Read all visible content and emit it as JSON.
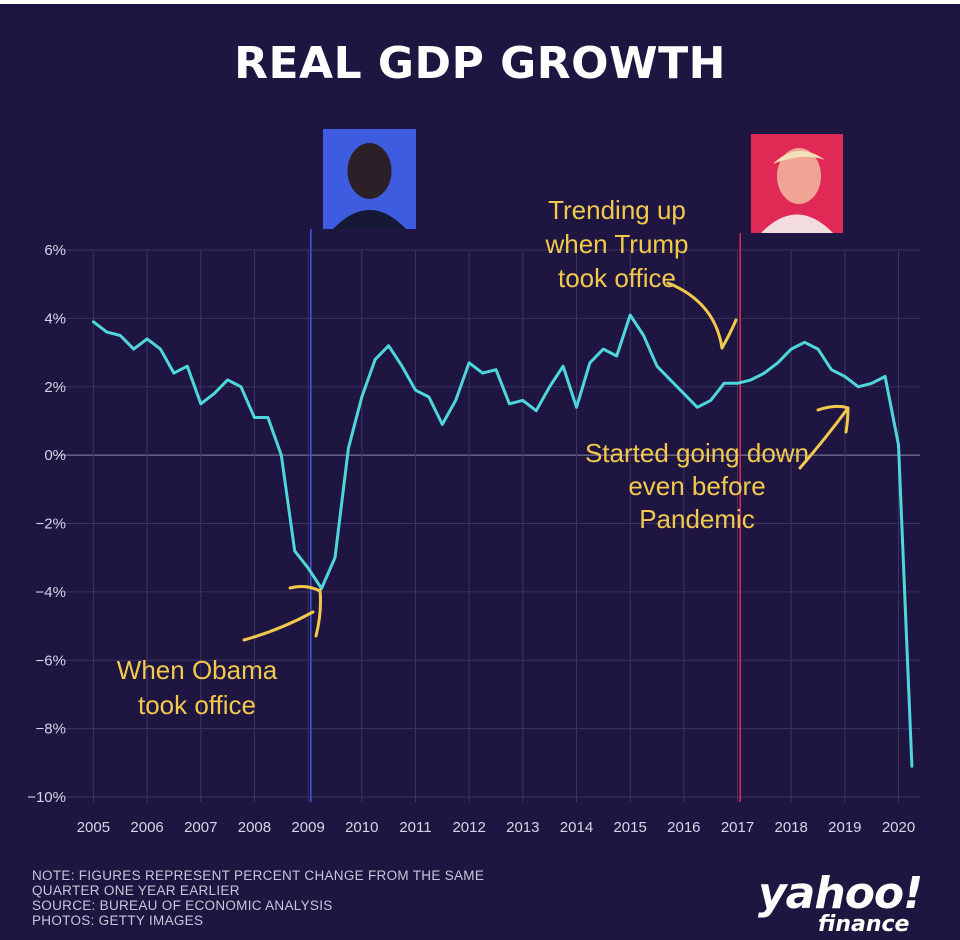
{
  "title": "REAL GDP GROWTH",
  "notes": [
    "NOTE: FIGURES REPRESENT PERCENT CHANGE FROM THE SAME",
    "QUARTER ONE YEAR EARLIER",
    "SOURCE: BUREAU OF ECONOMIC ANALYSIS",
    "PHOTOS: GETTY IMAGES"
  ],
  "logo": {
    "word": "yahoo!",
    "sub": "finance"
  },
  "colors": {
    "background": "#1e1641",
    "line": "#4fd6dc",
    "annotation": "#f2c94c",
    "obama_marker": "#3e5ce0",
    "trump_marker": "#e02a55",
    "grid": "#3b3460"
  },
  "photos": [
    {
      "name": "obama-photo",
      "bg": "#3e5ce0"
    },
    {
      "name": "trump-photo",
      "bg": "#e02a55"
    }
  ],
  "annotations": [
    {
      "name": "obama-annotation",
      "lines": [
        "When Obama",
        "took office"
      ]
    },
    {
      "name": "trump-annotation",
      "lines": [
        "Trending up",
        "when Trump",
        "took office"
      ]
    },
    {
      "name": "pandemic-annotation",
      "lines": [
        "Started going down",
        "even before",
        "Pandemic"
      ]
    }
  ],
  "chart_data": {
    "type": "line",
    "title": "REAL GDP GROWTH",
    "xlabel": "",
    "ylabel": "",
    "x_ticks": [
      "2005",
      "2006",
      "2007",
      "2008",
      "2009",
      "2010",
      "2011",
      "2012",
      "2013",
      "2014",
      "2015",
      "2016",
      "2017",
      "2018",
      "2019",
      "2020"
    ],
    "y_ticks": [
      "6%",
      "4%",
      "2%",
      "0%",
      "−2%",
      "−4%",
      "−6%",
      "−8%",
      "−10%"
    ],
    "ylim": [
      -10,
      6
    ],
    "xlim": [
      2004.75,
      2020.4
    ],
    "grid": true,
    "series": [
      {
        "x": [
          2005.0,
          2005.25,
          2005.5,
          2005.75,
          2006.0,
          2006.25,
          2006.5,
          2006.75,
          2007.0,
          2007.25,
          2007.5,
          2007.75,
          2008.0,
          2008.25,
          2008.5,
          2008.75,
          2009.0,
          2009.25,
          2009.5,
          2009.75,
          2010.0,
          2010.25,
          2010.5,
          2010.75,
          2011.0,
          2011.25,
          2011.5,
          2011.75,
          2012.0,
          2012.25,
          2012.5,
          2012.75,
          2013.0,
          2013.25,
          2013.5,
          2013.75,
          2014.0,
          2014.25,
          2014.5,
          2014.75,
          2015.0,
          2015.25,
          2015.5,
          2015.75,
          2016.0,
          2016.25,
          2016.5,
          2016.75,
          2017.0,
          2017.25,
          2017.5,
          2017.75,
          2018.0,
          2018.25,
          2018.5,
          2018.75,
          2019.0,
          2019.25,
          2019.5,
          2019.75,
          2020.0,
          2020.25
        ],
        "values": [
          3.9,
          3.6,
          3.5,
          3.1,
          3.4,
          3.1,
          2.4,
          2.6,
          1.5,
          1.8,
          2.2,
          2.0,
          1.1,
          1.1,
          0.0,
          -2.8,
          -3.3,
          -3.9,
          -3.0,
          0.2,
          1.7,
          2.8,
          3.2,
          2.6,
          1.9,
          1.7,
          0.9,
          1.6,
          2.7,
          2.4,
          2.5,
          1.5,
          1.6,
          1.3,
          2.0,
          2.6,
          1.4,
          2.7,
          3.1,
          2.9,
          4.1,
          3.5,
          2.6,
          2.2,
          1.8,
          1.4,
          1.6,
          2.1,
          2.1,
          2.2,
          2.4,
          2.7,
          3.1,
          3.3,
          3.1,
          2.5,
          2.3,
          2.0,
          2.1,
          2.3,
          0.3,
          -9.1
        ]
      }
    ],
    "markers": [
      {
        "label": "Obama",
        "x": 2009.05
      },
      {
        "label": "Trump",
        "x": 2017.05
      }
    ]
  }
}
